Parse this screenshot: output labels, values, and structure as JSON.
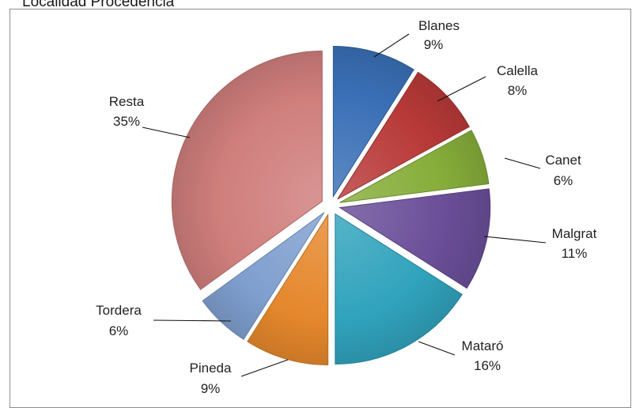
{
  "page": {
    "title": "Localidad Procedencia"
  },
  "chart_data": {
    "type": "pie",
    "title": "",
    "exploded": true,
    "categories": [
      "Blanes",
      "Calella",
      "Canet",
      "Malgrat",
      "Mataró",
      "Pineda",
      "Tordera",
      "Resta"
    ],
    "values": [
      9,
      8,
      6,
      11,
      16,
      9,
      6,
      35
    ],
    "labels": [
      "9%",
      "8%",
      "6%",
      "11%",
      "16%",
      "9%",
      "6%",
      "35%"
    ],
    "colors": [
      "#3a6fb6",
      "#b83a38",
      "#86ad3a",
      "#6a4e98",
      "#31a3bd",
      "#e5872c",
      "#7f9fcf",
      "#cf7e7c"
    ],
    "legend": "none",
    "data_labels": "outside-with-leader-lines"
  }
}
